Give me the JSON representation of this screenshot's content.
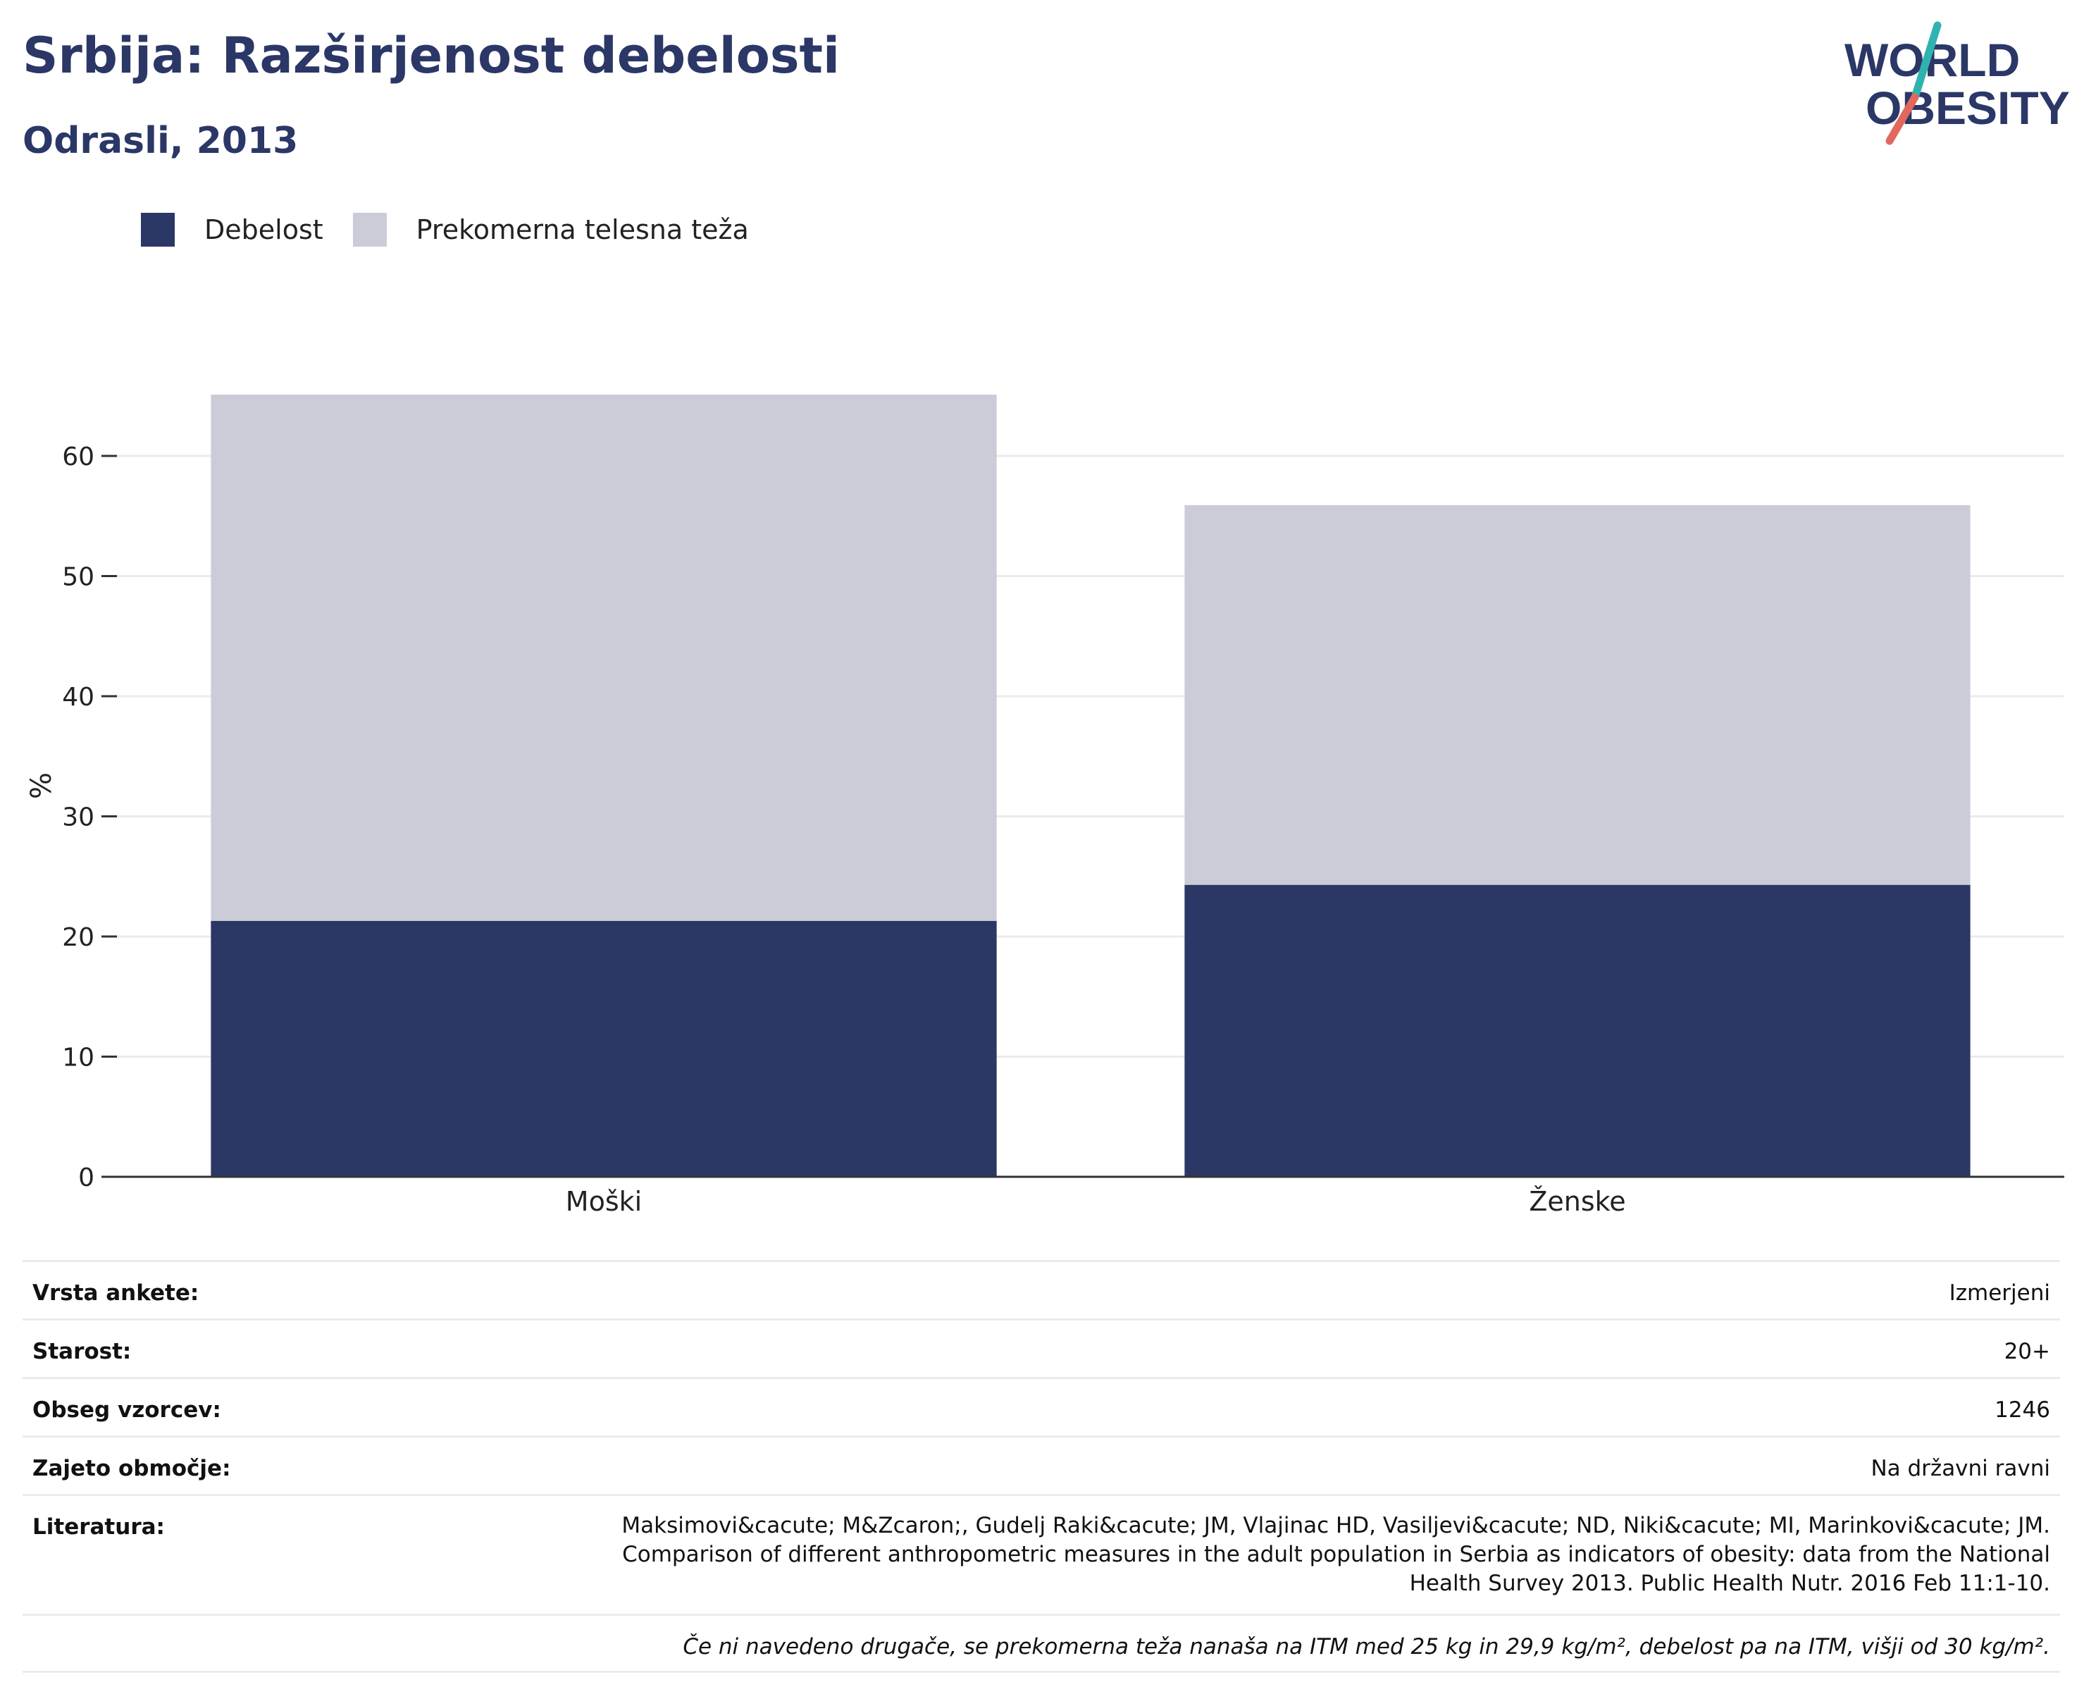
{
  "title": "Srbija: Razširjenost debelosti",
  "subtitle": "Odrasli, 2013",
  "logo": {
    "line1": "WORLD",
    "line2": "OBESITY"
  },
  "colors": {
    "obesity": "#2b3764",
    "overweight": "#cbccd8",
    "title": "#2b3766",
    "logo_teal": "#2fb3b0",
    "logo_coral": "#e2685e"
  },
  "legend": [
    {
      "label": "Debelost",
      "color": "#2b3764"
    },
    {
      "label": "Prekomerna telesna teža",
      "color": "#cbccd8"
    }
  ],
  "chart_data": {
    "type": "bar",
    "stacked": true,
    "categories": [
      "Moški",
      "Ženske"
    ],
    "series": [
      {
        "name": "Debelost",
        "values": [
          21.3,
          24.3
        ]
      },
      {
        "name": "Prekomerna telesna teža",
        "values": [
          43.8,
          31.6
        ]
      }
    ],
    "ylabel": "%",
    "ylim": [
      0,
      65.1
    ],
    "yticks": [
      0,
      10,
      20,
      30,
      40,
      50,
      60
    ],
    "grid": true,
    "legend_position": "top-left"
  },
  "info": {
    "rows": [
      {
        "label": "Vrsta ankete:",
        "value": "Izmerjeni"
      },
      {
        "label": "Starost:",
        "value": "20+"
      },
      {
        "label": "Obseg vzorcev:",
        "value": "1246"
      },
      {
        "label": "Zajeto območje:",
        "value": "Na državni ravni"
      }
    ],
    "reference_label": "Literatura:",
    "reference": "Maksimovi&cacute; M&Zcaron;, Gudelj Raki&cacute; JM, Vlajinac HD, Vasiljevi&cacute; ND, Niki&cacute; MI, Marinkovi&cacute; JM. Comparison of different anthropometric measures in the adult population in Serbia as indicators of obesity: data from the National Health Survey 2013. Public Health Nutr. 2016 Feb 11:1-10.",
    "note": "Če ni navedeno drugače, se prekomerna teža nanaša na ITM med 25 kg in 29,9 kg/m², debelost pa na ITM, višji od 30 kg/m²."
  }
}
